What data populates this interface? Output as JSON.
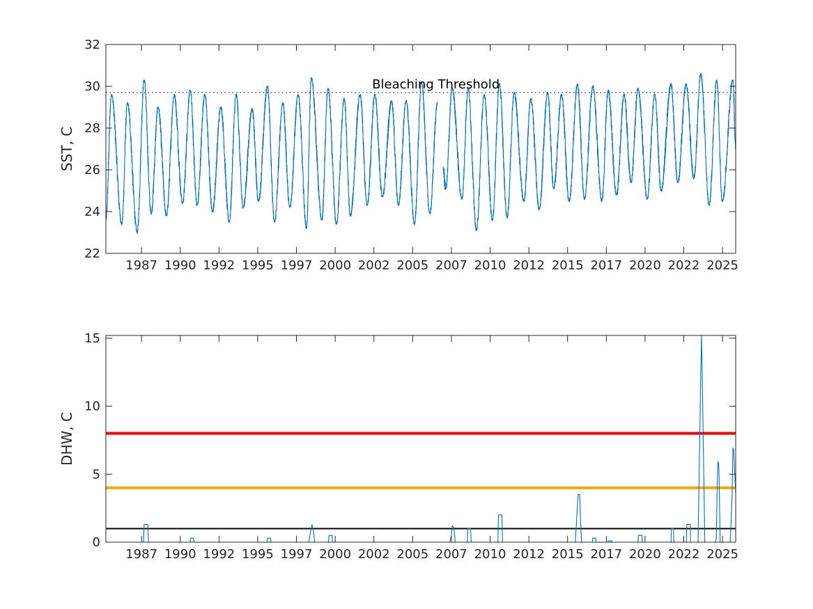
{
  "chart_data": [
    {
      "type": "line",
      "ylabel": "SST, C",
      "xlabel": "",
      "xlim": [
        1985.2,
        2025.85
      ],
      "ylim": [
        22,
        32
      ],
      "yticks": [
        22,
        24,
        26,
        28,
        30,
        32
      ],
      "xticks": [
        {
          "value": 1987.5,
          "label": "1987"
        },
        {
          "value": 1990,
          "label": "1990"
        },
        {
          "value": 1992.5,
          "label": "1992"
        },
        {
          "value": 1995,
          "label": "1995"
        },
        {
          "value": 1997.5,
          "label": "1997"
        },
        {
          "value": 2000,
          "label": "2000"
        },
        {
          "value": 2002.5,
          "label": "2002"
        },
        {
          "value": 2005,
          "label": "2005"
        },
        {
          "value": 2007.5,
          "label": "2007"
        },
        {
          "value": 2010,
          "label": "2010"
        },
        {
          "value": 2012.5,
          "label": "2012"
        },
        {
          "value": 2015,
          "label": "2015"
        },
        {
          "value": 2017.5,
          "label": "2017"
        },
        {
          "value": 2020,
          "label": "2020"
        },
        {
          "value": 2022.5,
          "label": "2022"
        },
        {
          "value": 2025,
          "label": "2025"
        }
      ],
      "series_color": "#0072BD",
      "segments": [
        [
          [
            1985.2,
            23.6
          ],
          [
            1985.56,
            29.6
          ],
          [
            1986.23,
            23.4
          ],
          [
            1986.59,
            29.2
          ],
          [
            1987.22,
            23.0
          ],
          [
            1987.67,
            30.3
          ],
          [
            1988.12,
            23.9
          ],
          [
            1988.57,
            29.0
          ],
          [
            1989.11,
            23.8
          ],
          [
            1989.61,
            29.6
          ],
          [
            1990.15,
            24.4
          ],
          [
            1990.64,
            29.8
          ],
          [
            1991.09,
            24.3
          ],
          [
            1991.58,
            29.6
          ],
          [
            1992.08,
            24.0
          ],
          [
            1992.62,
            29.0
          ],
          [
            1993.16,
            23.5
          ],
          [
            1993.61,
            29.6
          ],
          [
            1994.06,
            24.2
          ],
          [
            1994.64,
            28.9
          ],
          [
            1995.05,
            24.5
          ],
          [
            1995.63,
            30.0
          ],
          [
            1996.08,
            23.5
          ],
          [
            1996.62,
            29.2
          ],
          [
            1997.07,
            24.2
          ],
          [
            1997.61,
            29.6
          ],
          [
            1998.15,
            23.2
          ],
          [
            1998.46,
            30.4
          ],
          [
            1999.14,
            23.6
          ],
          [
            1999.54,
            29.9
          ],
          [
            2000.08,
            23.4
          ],
          [
            2000.58,
            29.4
          ],
          [
            2000.98,
            23.8
          ],
          [
            2001.61,
            29.6
          ],
          [
            2002.06,
            24.3
          ],
          [
            2002.56,
            29.6
          ],
          [
            2003.05,
            24.7
          ],
          [
            2003.64,
            29.3
          ],
          [
            2004.08,
            24.3
          ],
          [
            2004.58,
            29.3
          ],
          [
            2005.12,
            23.4
          ],
          [
            2005.57,
            30.2
          ],
          [
            2006.11,
            23.9
          ],
          [
            2006.6,
            29.2
          ]
        ],
        [
          [
            2006.96,
            26.1
          ],
          [
            2007.14,
            25.1
          ],
          [
            2007.55,
            29.9
          ],
          [
            2008.18,
            24.6
          ],
          [
            2008.58,
            29.9
          ],
          [
            2009.12,
            23.1
          ],
          [
            2009.62,
            29.6
          ],
          [
            2010.15,
            23.6
          ],
          [
            2010.6,
            30.1
          ],
          [
            2011.1,
            23.7
          ],
          [
            2011.55,
            29.7
          ],
          [
            2012.18,
            24.5
          ],
          [
            2012.63,
            29.4
          ],
          [
            2013.17,
            24.1
          ],
          [
            2013.71,
            29.7
          ],
          [
            2014.11,
            25.1
          ],
          [
            2014.61,
            29.6
          ],
          [
            2015.1,
            24.5
          ],
          [
            2015.64,
            30.1
          ],
          [
            2016.09,
            24.6
          ],
          [
            2016.63,
            30.0
          ],
          [
            2017.21,
            24.5
          ],
          [
            2017.62,
            29.8
          ],
          [
            2018.16,
            24.8
          ],
          [
            2018.65,
            29.6
          ],
          [
            2019.1,
            25.4
          ],
          [
            2019.55,
            29.9
          ],
          [
            2020.14,
            24.6
          ],
          [
            2020.63,
            29.6
          ],
          [
            2021.04,
            25.0
          ],
          [
            2021.67,
            30.1
          ],
          [
            2022.12,
            25.4
          ],
          [
            2022.65,
            30.1
          ],
          [
            2023.15,
            25.6
          ],
          [
            2023.6,
            30.6
          ],
          [
            2024.14,
            24.3
          ],
          [
            2024.63,
            30.3
          ],
          [
            2024.99,
            24.5
          ],
          [
            2025.67,
            30.3
          ],
          [
            2025.85,
            27.0
          ]
        ]
      ],
      "reference_lines": [
        {
          "y": 29.7,
          "style": "dotted",
          "color": "#000000",
          "label": "Bleaching Threshold",
          "label_x": 2006.5
        }
      ]
    },
    {
      "type": "line",
      "ylabel": "DHW, C",
      "xlabel": "",
      "xlim": [
        1985.2,
        2025.85
      ],
      "ylim": [
        0,
        15.2
      ],
      "yticks": [
        0,
        5,
        10,
        15
      ],
      "series_color": "#0072BD",
      "points": [
        [
          1985.2,
          0
        ],
        [
          1987.62,
          0
        ],
        [
          1987.67,
          1.3
        ],
        [
          1987.9,
          1.3
        ],
        [
          1987.95,
          0
        ],
        [
          1990.62,
          0
        ],
        [
          1990.68,
          0.3
        ],
        [
          1990.85,
          0.3
        ],
        [
          1990.9,
          0
        ],
        [
          1995.6,
          0
        ],
        [
          1995.63,
          0.3
        ],
        [
          1995.83,
          0.3
        ],
        [
          1995.86,
          0
        ],
        [
          1998.3,
          0
        ],
        [
          1998.4,
          0.7
        ],
        [
          1998.5,
          1.3
        ],
        [
          1998.6,
          0.8
        ],
        [
          1998.68,
          0
        ],
        [
          1999.56,
          0
        ],
        [
          1999.6,
          0.5
        ],
        [
          1999.8,
          0.5
        ],
        [
          1999.84,
          0
        ],
        [
          2007.4,
          0
        ],
        [
          2007.5,
          0.5
        ],
        [
          2007.56,
          1.2
        ],
        [
          2007.66,
          1.1
        ],
        [
          2007.75,
          0
        ],
        [
          2008.52,
          0
        ],
        [
          2008.56,
          1.0
        ],
        [
          2008.74,
          1.0
        ],
        [
          2008.78,
          0
        ],
        [
          2010.5,
          0
        ],
        [
          2010.54,
          2.0
        ],
        [
          2010.76,
          2.0
        ],
        [
          2010.8,
          0
        ],
        [
          2015.5,
          0
        ],
        [
          2015.6,
          2.0
        ],
        [
          2015.68,
          3.5
        ],
        [
          2015.78,
          3.5
        ],
        [
          2015.86,
          1.0
        ],
        [
          2015.9,
          0
        ],
        [
          2016.6,
          0
        ],
        [
          2016.62,
          0.3
        ],
        [
          2016.82,
          0.3
        ],
        [
          2016.84,
          0
        ],
        [
          2017.6,
          0
        ],
        [
          2017.62,
          0.1
        ],
        [
          2017.85,
          0.1
        ],
        [
          2017.87,
          0
        ],
        [
          2019.55,
          0
        ],
        [
          2019.57,
          0.5
        ],
        [
          2019.8,
          0.5
        ],
        [
          2019.82,
          0
        ],
        [
          2021.68,
          0
        ],
        [
          2021.7,
          1.0
        ],
        [
          2021.84,
          1.0
        ],
        [
          2021.86,
          0
        ],
        [
          2022.67,
          0
        ],
        [
          2022.7,
          1.3
        ],
        [
          2022.92,
          1.3
        ],
        [
          2022.94,
          0
        ],
        [
          2023.42,
          0
        ],
        [
          2023.6,
          12.5
        ],
        [
          2023.65,
          15.2
        ],
        [
          2023.75,
          8.0
        ],
        [
          2023.86,
          0
        ],
        [
          2024.54,
          0
        ],
        [
          2024.6,
          0.3
        ],
        [
          2024.65,
          3.5
        ],
        [
          2024.7,
          5.9
        ],
        [
          2024.75,
          5.8
        ],
        [
          2024.78,
          4.8
        ],
        [
          2024.85,
          0
        ],
        [
          2025.5,
          0
        ],
        [
          2025.62,
          3.5
        ],
        [
          2025.67,
          6.9
        ],
        [
          2025.72,
          6.8
        ],
        [
          2025.85,
          3.6
        ]
      ],
      "reference_lines": [
        {
          "y": 8,
          "style": "solid",
          "color": "#FF0000"
        },
        {
          "y": 4,
          "style": "solid",
          "color": "#FFA500"
        },
        {
          "y": 1,
          "style": "solid",
          "color": "#000000"
        }
      ]
    }
  ]
}
